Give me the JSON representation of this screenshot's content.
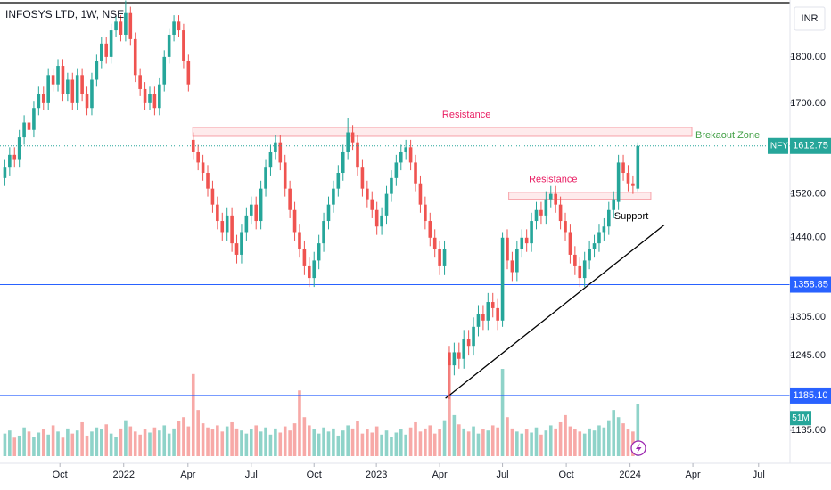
{
  "chart_data": {
    "type": "candlestick",
    "title": "INFOSYS LTD, 1W, NSE",
    "currency": "INR",
    "symbol": "INFY",
    "log_scale": true,
    "grid": false,
    "up_color": "#26a69a",
    "down_color": "#ef5350",
    "up_volume_color": "#8fd3c9",
    "down_volume_color": "#f7a9a7",
    "ylim": [
      1090,
      1931
    ],
    "yticks": [
      {
        "value": 1135,
        "label": "1135.00"
      },
      {
        "value": 1245,
        "label": "1245.00"
      },
      {
        "value": 1305,
        "label": "1305.00"
      },
      {
        "value": 1440,
        "label": "1440.00"
      },
      {
        "value": 1520,
        "label": "1520.00"
      },
      {
        "value": 1700,
        "label": "1700.00"
      },
      {
        "value": 1800,
        "label": "1800.00"
      }
    ],
    "xlim": [
      -1,
      162.5
    ],
    "xticks": [
      {
        "value": 11.4,
        "label": "Oct"
      },
      {
        "value": 24.6,
        "label": "2022"
      },
      {
        "value": 37.9,
        "label": "Apr"
      },
      {
        "value": 51,
        "label": "Jul"
      },
      {
        "value": 64,
        "label": "Oct"
      },
      {
        "value": 76.9,
        "label": "2023"
      },
      {
        "value": 90,
        "label": "Apr"
      },
      {
        "value": 103,
        "label": "Jul"
      },
      {
        "value": 116.2,
        "label": "Oct"
      },
      {
        "value": 129.4,
        "label": "2024"
      },
      {
        "value": 142.4,
        "label": "Apr"
      },
      {
        "value": 156,
        "label": "Jul"
      }
    ],
    "open": [
      1550,
      1570,
      1595,
      1585,
      1630,
      1660,
      1645,
      1690,
      1720,
      1700,
      1760,
      1740,
      1780,
      1720,
      1750,
      1700,
      1760,
      1720,
      1690,
      1750,
      1790,
      1830,
      1800,
      1860,
      1880,
      1850,
      1900,
      1840,
      1760,
      1730,
      1700,
      1720,
      1690,
      1740,
      1800,
      1850,
      1880,
      1860,
      1790,
      1625,
      1600,
      1580,
      1560,
      1530,
      1500,
      1470,
      1450,
      1480,
      1430,
      1410,
      1450,
      1480,
      1500,
      1470,
      1530,
      1570,
      1600,
      1620,
      1580,
      1530,
      1490,
      1450,
      1420,
      1390,
      1370,
      1400,
      1430,
      1470,
      1500,
      1530,
      1560,
      1600,
      1640,
      1620,
      1570,
      1530,
      1510,
      1490,
      1460,
      1480,
      1520,
      1550,
      1580,
      1600,
      1610,
      1580,
      1540,
      1500,
      1470,
      1440,
      1420,
      1390,
      1250,
      1230,
      1250,
      1240,
      1270,
      1260,
      1290,
      1310,
      1300,
      1330,
      1320,
      1300,
      1440,
      1400,
      1380,
      1420,
      1440,
      1430,
      1470,
      1490,
      1480,
      1510,
      1520,
      1500,
      1470,
      1450,
      1410,
      1390,
      1370,
      1400,
      1420,
      1430,
      1450,
      1460,
      1490,
      1505,
      1580,
      1560,
      1540,
      1530
    ],
    "high": [
      1585,
      1610,
      1610,
      1645,
      1675,
      1675,
      1705,
      1735,
      1735,
      1775,
      1775,
      1795,
      1795,
      1765,
      1765,
      1775,
      1775,
      1735,
      1765,
      1805,
      1845,
      1845,
      1875,
      1895,
      1895,
      1930,
      1915,
      1855,
      1775,
      1745,
      1735,
      1735,
      1755,
      1815,
      1865,
      1895,
      1895,
      1875,
      1805,
      1640,
      1615,
      1595,
      1575,
      1545,
      1515,
      1485,
      1495,
      1495,
      1445,
      1465,
      1495,
      1515,
      1515,
      1545,
      1585,
      1615,
      1635,
      1635,
      1595,
      1545,
      1505,
      1465,
      1435,
      1405,
      1415,
      1445,
      1485,
      1515,
      1545,
      1575,
      1615,
      1670,
      1655,
      1635,
      1585,
      1545,
      1525,
      1505,
      1495,
      1535,
      1565,
      1595,
      1615,
      1625,
      1625,
      1595,
      1555,
      1515,
      1485,
      1455,
      1435,
      1435,
      1260,
      1265,
      1265,
      1285,
      1285,
      1305,
      1325,
      1325,
      1345,
      1345,
      1335,
      1450,
      1455,
      1415,
      1435,
      1455,
      1455,
      1485,
      1505,
      1505,
      1525,
      1535,
      1535,
      1515,
      1485,
      1465,
      1425,
      1405,
      1415,
      1435,
      1445,
      1465,
      1475,
      1505,
      1525,
      1595,
      1595,
      1575,
      1555,
      1620
    ],
    "low": [
      1535,
      1555,
      1570,
      1570,
      1615,
      1630,
      1630,
      1675,
      1685,
      1685,
      1725,
      1725,
      1705,
      1705,
      1685,
      1685,
      1705,
      1675,
      1675,
      1735,
      1775,
      1785,
      1785,
      1845,
      1835,
      1835,
      1825,
      1745,
      1715,
      1685,
      1685,
      1675,
      1675,
      1725,
      1785,
      1835,
      1845,
      1775,
      1725,
      1585,
      1565,
      1545,
      1515,
      1485,
      1455,
      1435,
      1435,
      1415,
      1395,
      1395,
      1435,
      1465,
      1455,
      1455,
      1515,
      1555,
      1585,
      1565,
      1515,
      1475,
      1435,
      1405,
      1375,
      1355,
      1355,
      1385,
      1415,
      1455,
      1485,
      1515,
      1545,
      1585,
      1605,
      1555,
      1515,
      1495,
      1475,
      1445,
      1445,
      1465,
      1505,
      1535,
      1565,
      1585,
      1565,
      1525,
      1485,
      1455,
      1425,
      1405,
      1375,
      1375,
      1180,
      1215,
      1225,
      1225,
      1245,
      1245,
      1275,
      1285,
      1285,
      1305,
      1285,
      1290,
      1385,
      1365,
      1365,
      1405,
      1415,
      1415,
      1455,
      1465,
      1465,
      1495,
      1485,
      1455,
      1435,
      1395,
      1375,
      1355,
      1355,
      1385,
      1405,
      1415,
      1435,
      1445,
      1475,
      1490,
      1545,
      1525,
      1520,
      1525
    ],
    "close": [
      1570,
      1595,
      1585,
      1630,
      1660,
      1645,
      1690,
      1720,
      1700,
      1760,
      1740,
      1780,
      1720,
      1750,
      1700,
      1760,
      1720,
      1690,
      1750,
      1790,
      1830,
      1800,
      1860,
      1880,
      1850,
      1900,
      1840,
      1760,
      1730,
      1700,
      1720,
      1690,
      1740,
      1800,
      1850,
      1880,
      1860,
      1790,
      1740,
      1600,
      1580,
      1560,
      1530,
      1500,
      1470,
      1450,
      1480,
      1430,
      1410,
      1450,
      1480,
      1500,
      1470,
      1530,
      1570,
      1600,
      1620,
      1580,
      1530,
      1490,
      1450,
      1420,
      1390,
      1370,
      1400,
      1430,
      1470,
      1500,
      1530,
      1560,
      1600,
      1640,
      1620,
      1570,
      1530,
      1510,
      1490,
      1460,
      1480,
      1520,
      1550,
      1580,
      1600,
      1610,
      1580,
      1540,
      1500,
      1470,
      1440,
      1420,
      1390,
      1420,
      1230,
      1250,
      1240,
      1270,
      1260,
      1290,
      1310,
      1300,
      1330,
      1320,
      1300,
      1440,
      1400,
      1380,
      1420,
      1440,
      1430,
      1470,
      1490,
      1480,
      1510,
      1520,
      1500,
      1470,
      1450,
      1410,
      1390,
      1370,
      1400,
      1420,
      1430,
      1450,
      1460,
      1490,
      1510,
      1580,
      1560,
      1540,
      1535,
      1612.75
    ],
    "volume": [
      22,
      25,
      18,
      20,
      28,
      24,
      19,
      23,
      26,
      21,
      30,
      24,
      18,
      27,
      22,
      25,
      33,
      20,
      24,
      28,
      26,
      31,
      22,
      19,
      27,
      35,
      29,
      24,
      21,
      26,
      23,
      28,
      25,
      30,
      22,
      27,
      34,
      38,
      29,
      80,
      45,
      32,
      28,
      26,
      30,
      24,
      29,
      33,
      27,
      25,
      22,
      26,
      30,
      24,
      28,
      21,
      27,
      23,
      29,
      25,
      32,
      64,
      38,
      30,
      26,
      22,
      28,
      24,
      27,
      20,
      25,
      30,
      27,
      34,
      22,
      26,
      23,
      29,
      21,
      25,
      19,
      23,
      26,
      21,
      28,
      33,
      24,
      27,
      30,
      22,
      26,
      35,
      90,
      40,
      31,
      27,
      24,
      29,
      22,
      26,
      25,
      30,
      28,
      85,
      38,
      27,
      24,
      22,
      26,
      23,
      28,
      21,
      25,
      30,
      27,
      33,
      40,
      29,
      26,
      24,
      22,
      27,
      25,
      30,
      28,
      35,
      45,
      38,
      32,
      26,
      24,
      51
    ],
    "vlim": [
      0,
      105
    ],
    "volume_label": "51M",
    "levels": [
      {
        "value": 1358.85,
        "label": "1358.85"
      },
      {
        "value": 1185.1,
        "label": "1185.10"
      }
    ],
    "level_color": "#2962ff",
    "zones": [
      {
        "label": "Resistance",
        "x0": 38.9,
        "x1": 142.2,
        "y0": 1632,
        "y1": 1650
      },
      {
        "label": "Resistance",
        "x0": 104.3,
        "x1": 133.7,
        "y0": 1510,
        "y1": 1523
      }
    ],
    "zone_note": "Brekaout Zone",
    "support_note": "Support",
    "trendline": {
      "x": [
        91.2,
        136.5
      ],
      "y": [
        1181,
        1463
      ]
    }
  }
}
